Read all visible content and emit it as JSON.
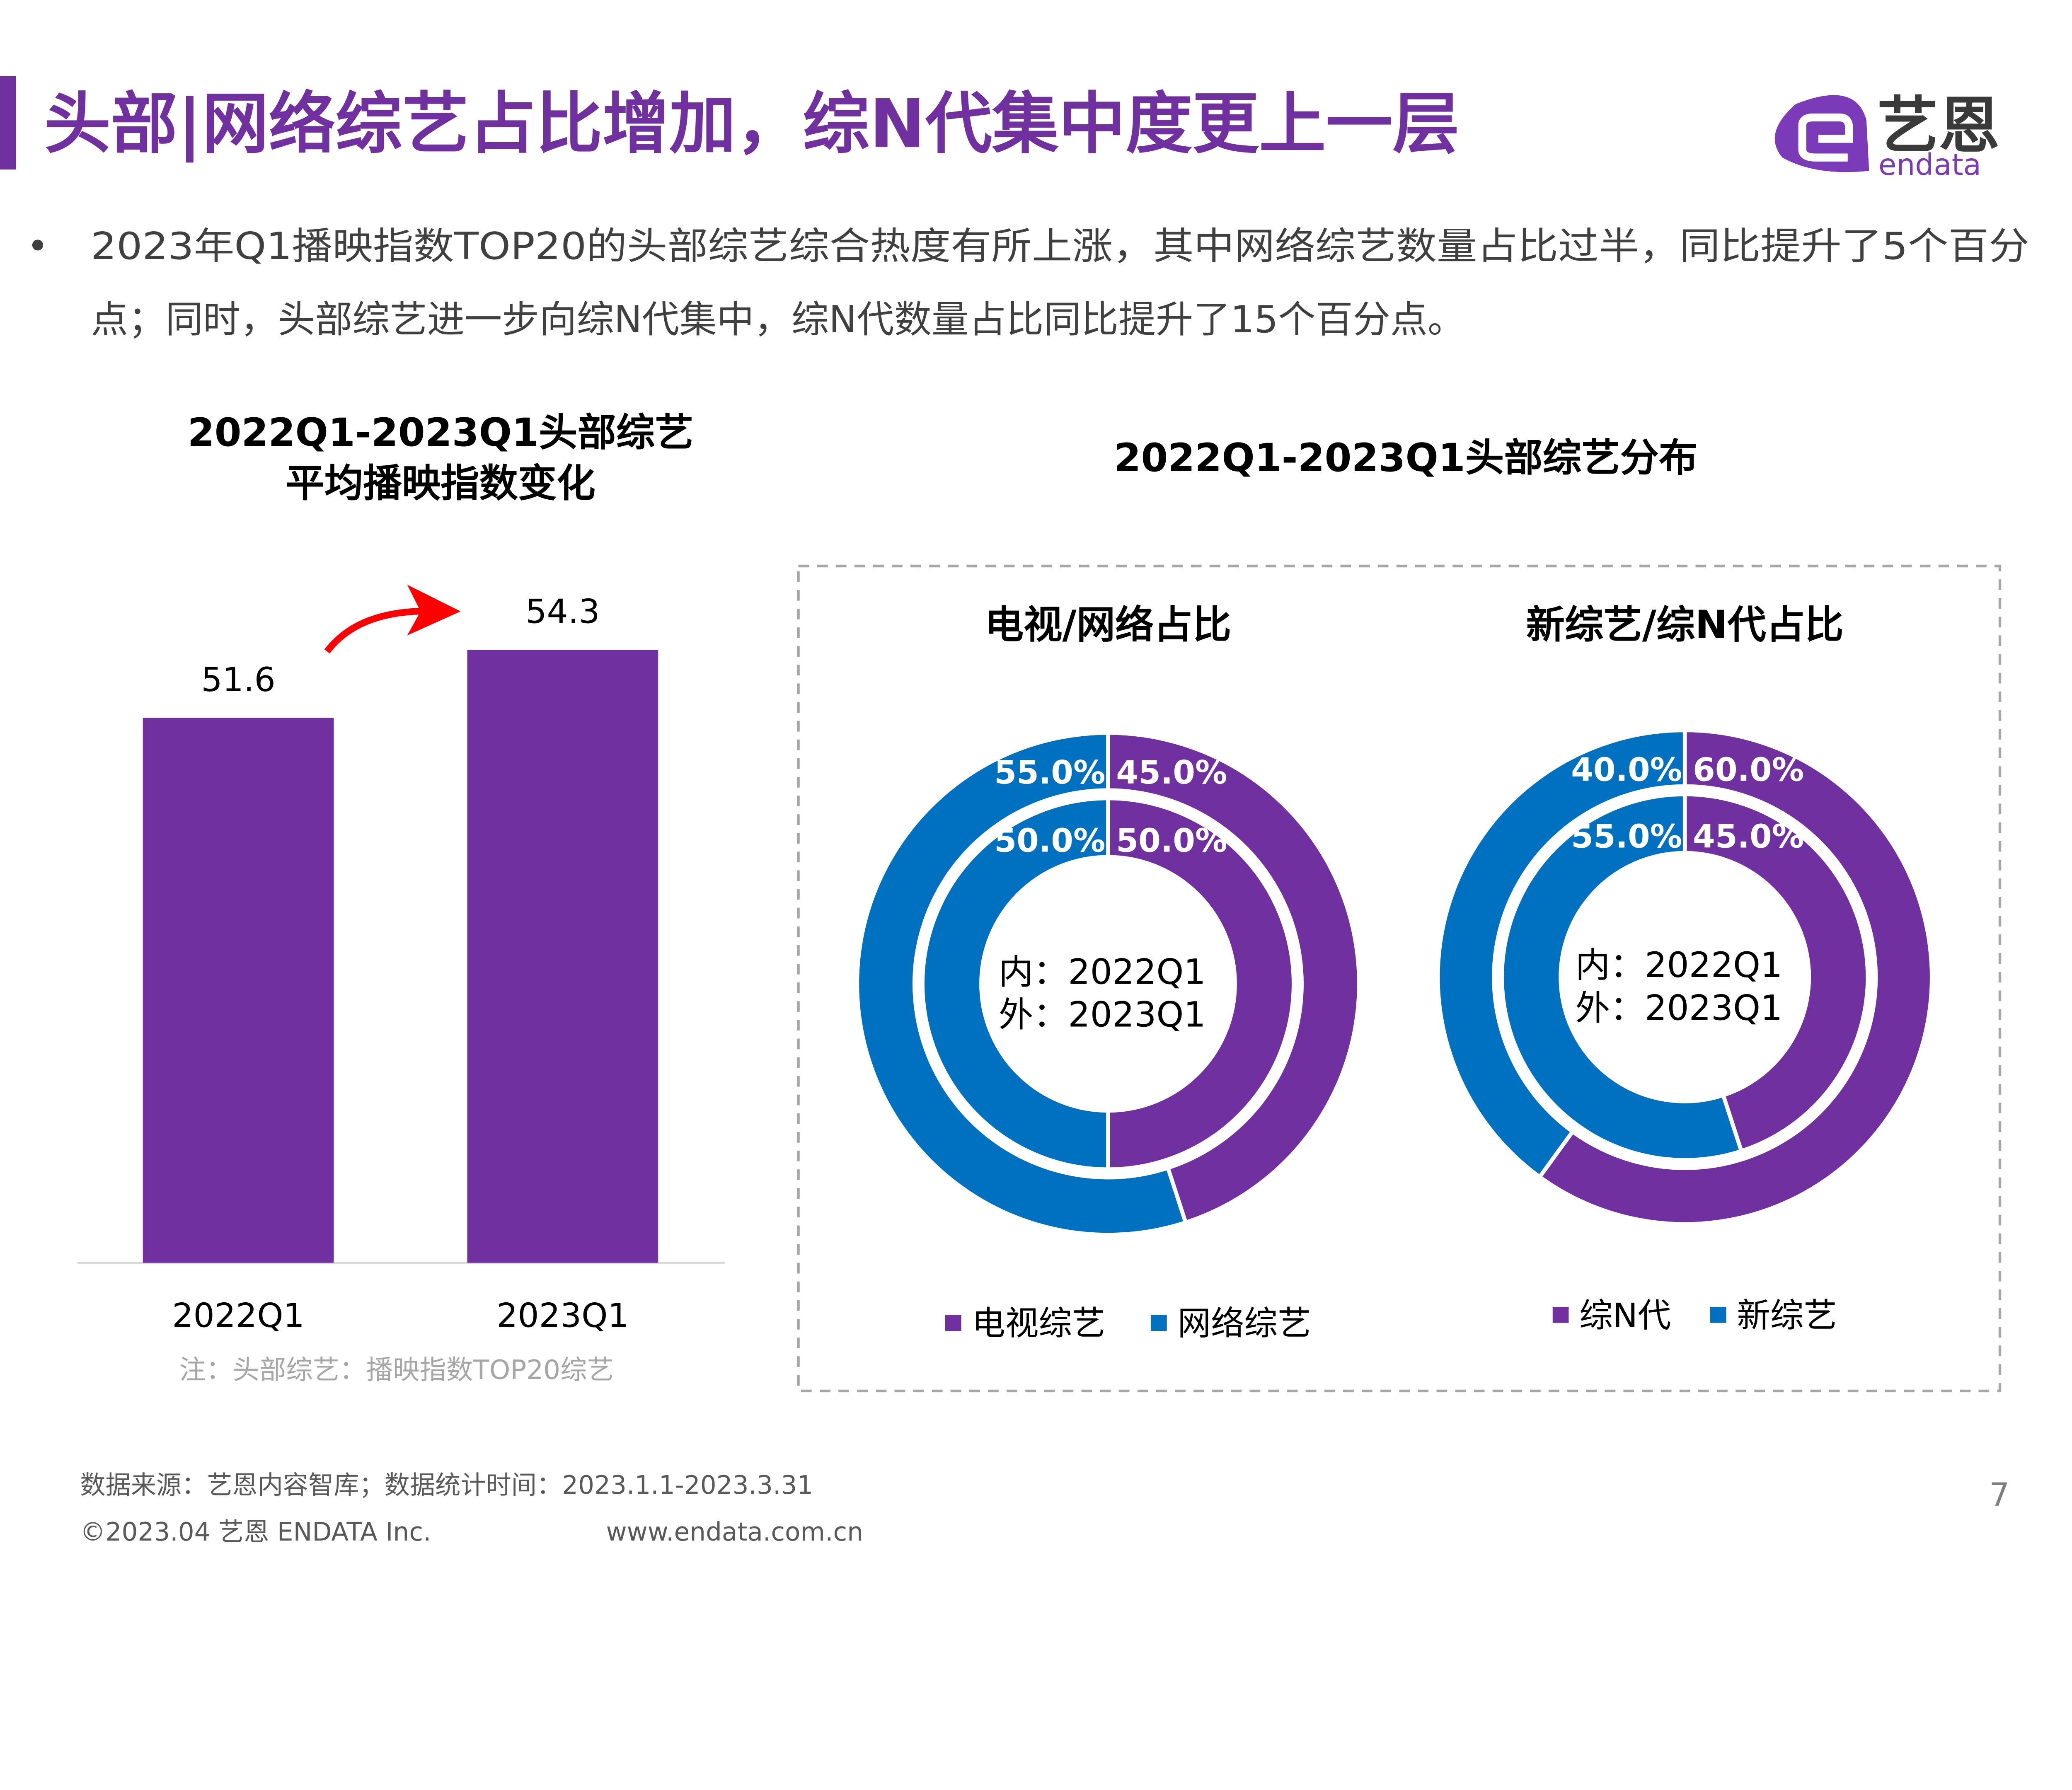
{
  "header": {
    "title": "头部|网络综艺占比增加，综N代集中度更上一层",
    "logo_text_cn": "艺恩",
    "logo_text_en": "endata"
  },
  "summary": {
    "bullet": "•",
    "line1": "2023年Q1播映指数TOP20的头部综艺综合热度有所上涨，其中网络综艺数量占比过半，同比提升了5个百分",
    "line2": "点；同时，头部综艺进一步向综N代集中，综N代数量占比同比提升了15个百分点。"
  },
  "colors": {
    "purple": "#7030a0",
    "blue": "#0070c0",
    "arrow": "#ff0000"
  },
  "chart_data": [
    {
      "type": "bar",
      "title_line1": "2022Q1-2023Q1头部综艺",
      "title_line2": "平均播映指数变化",
      "categories": [
        "2022Q1",
        "2023Q1"
      ],
      "values": [
        51.6,
        54.3
      ],
      "value_labels": [
        "51.6",
        "54.3"
      ],
      "ylim": [
        30,
        58
      ],
      "grid": false,
      "note": "注：头部综艺：播映指数TOP20综艺"
    },
    {
      "type": "pie",
      "group_title": "2022Q1-2023Q1头部综艺分布",
      "charts": [
        {
          "title": "电视/网络占比",
          "center_line1": "内：2022Q1",
          "center_line2": "外：2023Q1",
          "legend": [
            "电视综艺",
            "网络综艺"
          ],
          "inner": {
            "values": [
              50.0,
              50.0
            ],
            "labels": [
              "50.0%",
              "50.0%"
            ]
          },
          "outer": {
            "values": [
              45.0,
              55.0
            ],
            "labels": [
              "45.0%",
              "55.0%"
            ]
          }
        },
        {
          "title": "新综艺/综N代占比",
          "center_line1": "内：2022Q1",
          "center_line2": "外：2023Q1",
          "legend": [
            "综N代",
            "新综艺"
          ],
          "inner": {
            "values": [
              45.0,
              55.0
            ],
            "labels": [
              "45.0%",
              "55.0%"
            ]
          },
          "outer": {
            "values": [
              60.0,
              40.0
            ],
            "labels": [
              "60.0%",
              "40.0%"
            ]
          }
        }
      ]
    }
  ],
  "footer": {
    "source": "数据来源：艺恩内容智库；数据统计时间：2023.1.1-2023.3.31",
    "copyright": "©2023.04 艺恩 ENDATA Inc.",
    "website": "www.endata.com.cn",
    "page_number": "7"
  }
}
